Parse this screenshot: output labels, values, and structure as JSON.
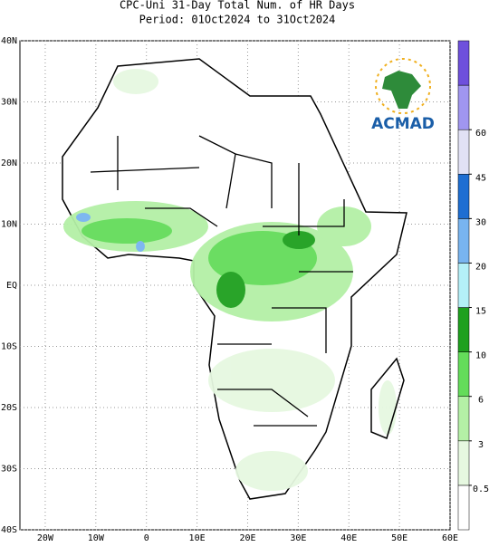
{
  "title": {
    "line1": "CPC-Uni 31-Day Total Num. of HR Days",
    "line2": "Period: 01Oct2024 to 31Oct2024"
  },
  "lat_labels": [
    "40N",
    "30N",
    "20N",
    "10N",
    "EQ",
    "10S",
    "20S",
    "30S",
    "40S"
  ],
  "lon_labels": [
    "20W",
    "10W",
    "0",
    "10E",
    "20E",
    "30E",
    "40E",
    "50E",
    "60E"
  ],
  "logo": {
    "text": "ACMAD"
  },
  "colorbar": {
    "levels": [
      0.5,
      3,
      6,
      10,
      15,
      20,
      30,
      45,
      60
    ],
    "colors": [
      "#ffffff",
      "#e6f8e0",
      "#b4f0a6",
      "#64dc5a",
      "#1ea01e",
      "#b4f0f8",
      "#78b4f0",
      "#1e6ed2",
      "#e1e1f5",
      "#a096f0",
      "#6e50dc"
    ]
  }
}
